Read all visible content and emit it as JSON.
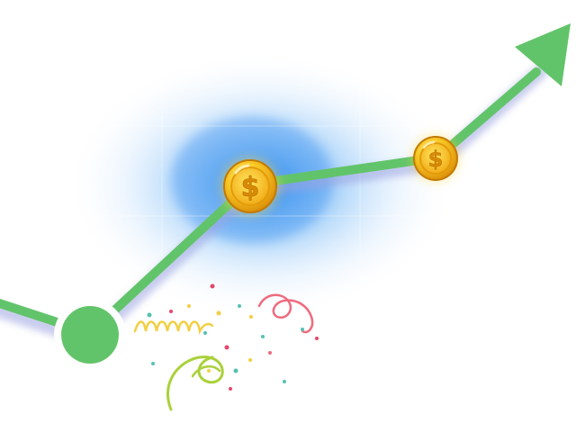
{
  "illustration": {
    "subject": "growth-trend-with-coins",
    "coin_symbol": "$",
    "colors": {
      "line": "#62c46a",
      "line_shadow": "#b8bde8",
      "glow": "#3d9cf0",
      "coin_light": "#ffe36a",
      "coin_mid": "#f7c01c",
      "coin_dark": "#d68a06",
      "node_ring": "#ffffff",
      "confetti_yellow": "#f2cf43",
      "confetti_green": "#a9d13a",
      "confetti_pink": "#ef6b7f",
      "confetti_teal": "#55c1b3",
      "confetti_red": "#e5476a"
    },
    "icons": [
      "trend-line",
      "arrow-head-icon",
      "dollar-coin-icon",
      "start-node",
      "confetti-streamer"
    ]
  }
}
